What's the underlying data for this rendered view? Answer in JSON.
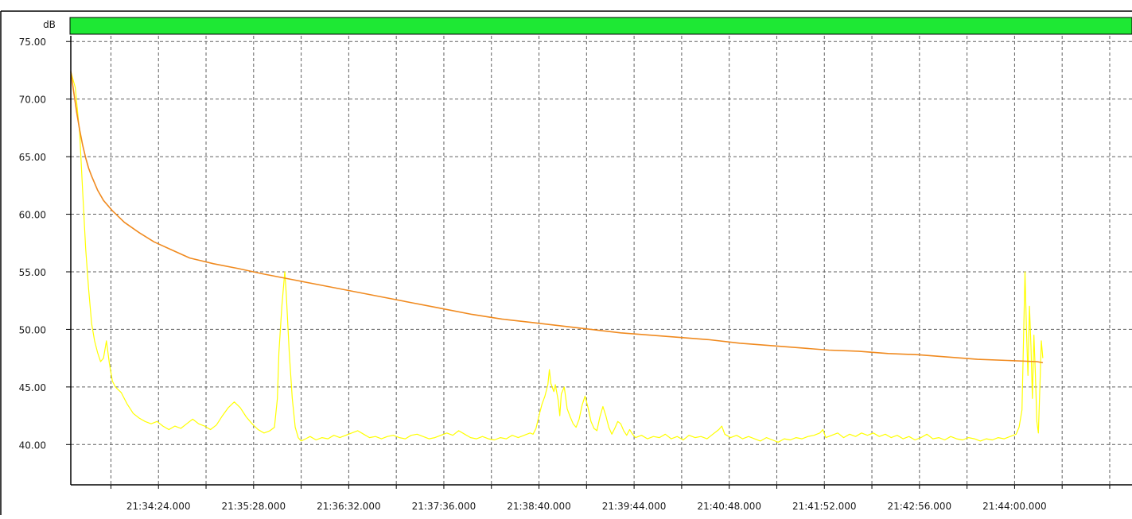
{
  "chart_data": {
    "type": "line",
    "ylabel": "dB",
    "ylim": [
      36.5,
      75.5
    ],
    "y_ticks": [
      "75.00",
      "70.00",
      "65.00",
      "60.00",
      "55.00",
      "50.00",
      "45.00",
      "40.00"
    ],
    "y_tick_values": [
      75,
      70,
      65,
      60,
      55,
      50,
      45,
      40
    ],
    "x_unit": "seconds_since_21:34:24.000",
    "xlim": [
      -59,
      655
    ],
    "x_ticks": [
      "21:34:24.000",
      "21:35:28.000",
      "21:36:32.000",
      "21:37:36.000",
      "21:38:40.000",
      "21:39:44.000",
      "21:40:48.000",
      "21:41:52.000",
      "21:42:56.000",
      "21:44:00.000"
    ],
    "x_tick_values": [
      0,
      64,
      128,
      192,
      256,
      320,
      384,
      448,
      512,
      576
    ],
    "grid": true,
    "level_bar_color": "#1ee834",
    "series": [
      {
        "color": "#ffff00",
        "points": [
          [
            -59,
            72.4
          ],
          [
            -56,
            71.0
          ],
          [
            -53,
            67.0
          ],
          [
            -51,
            62.0
          ],
          [
            -49,
            57.0
          ],
          [
            -47,
            53.5
          ],
          [
            -45,
            50.5
          ],
          [
            -43,
            49.0
          ],
          [
            -41,
            48.0
          ],
          [
            -39,
            47.2
          ],
          [
            -37,
            47.5
          ],
          [
            -35,
            49.0
          ],
          [
            -33,
            47.0
          ],
          [
            -31,
            45.5
          ],
          [
            -29,
            45.0
          ],
          [
            -25,
            44.5
          ],
          [
            -21,
            43.5
          ],
          [
            -17,
            42.7
          ],
          [
            -13,
            42.3
          ],
          [
            -9,
            42.0
          ],
          [
            -5,
            41.8
          ],
          [
            -1,
            42.0
          ],
          [
            3,
            41.6
          ],
          [
            7,
            41.3
          ],
          [
            11,
            41.6
          ],
          [
            15,
            41.4
          ],
          [
            19,
            41.8
          ],
          [
            23,
            42.2
          ],
          [
            27,
            41.8
          ],
          [
            31,
            41.6
          ],
          [
            35,
            41.3
          ],
          [
            39,
            41.7
          ],
          [
            43,
            42.5
          ],
          [
            47,
            43.2
          ],
          [
            51,
            43.7
          ],
          [
            55,
            43.2
          ],
          [
            59,
            42.4
          ],
          [
            63,
            41.8
          ],
          [
            67,
            41.3
          ],
          [
            71,
            41.0
          ],
          [
            75,
            41.2
          ],
          [
            78,
            41.5
          ],
          [
            80,
            44.0
          ],
          [
            81,
            48.0
          ],
          [
            83,
            52.0
          ],
          [
            85,
            55.0
          ],
          [
            86,
            53.0
          ],
          [
            88,
            48.0
          ],
          [
            90,
            44.0
          ],
          [
            92,
            41.5
          ],
          [
            94,
            40.6
          ],
          [
            96,
            40.3
          ],
          [
            99,
            40.5
          ],
          [
            102,
            40.7
          ],
          [
            106,
            40.4
          ],
          [
            110,
            40.6
          ],
          [
            114,
            40.5
          ],
          [
            118,
            40.8
          ],
          [
            122,
            40.6
          ],
          [
            126,
            40.8
          ],
          [
            130,
            41.0
          ],
          [
            134,
            41.2
          ],
          [
            138,
            40.9
          ],
          [
            142,
            40.6
          ],
          [
            146,
            40.7
          ],
          [
            150,
            40.5
          ],
          [
            154,
            40.7
          ],
          [
            158,
            40.8
          ],
          [
            162,
            40.6
          ],
          [
            166,
            40.5
          ],
          [
            170,
            40.8
          ],
          [
            174,
            40.9
          ],
          [
            178,
            40.7
          ],
          [
            182,
            40.5
          ],
          [
            186,
            40.6
          ],
          [
            190,
            40.8
          ],
          [
            194,
            41.0
          ],
          [
            198,
            40.8
          ],
          [
            202,
            41.2
          ],
          [
            206,
            40.9
          ],
          [
            210,
            40.6
          ],
          [
            214,
            40.5
          ],
          [
            218,
            40.7
          ],
          [
            222,
            40.5
          ],
          [
            226,
            40.4
          ],
          [
            230,
            40.6
          ],
          [
            234,
            40.5
          ],
          [
            238,
            40.8
          ],
          [
            242,
            40.6
          ],
          [
            246,
            40.8
          ],
          [
            250,
            41.0
          ],
          [
            252,
            40.9
          ],
          [
            254,
            41.4
          ],
          [
            256,
            42.5
          ],
          [
            258,
            43.5
          ],
          [
            260,
            44.2
          ],
          [
            262,
            45.2
          ],
          [
            263,
            46.5
          ],
          [
            264,
            45.3
          ],
          [
            266,
            44.6
          ],
          [
            267,
            45.2
          ],
          [
            269,
            43.8
          ],
          [
            270,
            42.5
          ],
          [
            271,
            44.4
          ],
          [
            273,
            45.0
          ],
          [
            275,
            43.1
          ],
          [
            277,
            42.4
          ],
          [
            279,
            41.8
          ],
          [
            281,
            41.5
          ],
          [
            283,
            42.2
          ],
          [
            285,
            43.4
          ],
          [
            287,
            44.2
          ],
          [
            289,
            43.2
          ],
          [
            291,
            42.0
          ],
          [
            293,
            41.4
          ],
          [
            295,
            41.2
          ],
          [
            297,
            42.4
          ],
          [
            299,
            43.3
          ],
          [
            301,
            42.5
          ],
          [
            303,
            41.5
          ],
          [
            305,
            40.9
          ],
          [
            307,
            41.4
          ],
          [
            309,
            42.0
          ],
          [
            311,
            41.8
          ],
          [
            313,
            41.2
          ],
          [
            315,
            40.8
          ],
          [
            317,
            41.3
          ],
          [
            319,
            40.9
          ],
          [
            321,
            40.6
          ],
          [
            325,
            40.8
          ],
          [
            329,
            40.5
          ],
          [
            333,
            40.7
          ],
          [
            337,
            40.6
          ],
          [
            341,
            40.9
          ],
          [
            345,
            40.5
          ],
          [
            349,
            40.7
          ],
          [
            353,
            40.4
          ],
          [
            357,
            40.8
          ],
          [
            361,
            40.6
          ],
          [
            365,
            40.7
          ],
          [
            369,
            40.5
          ],
          [
            373,
            40.9
          ],
          [
            377,
            41.3
          ],
          [
            379,
            41.6
          ],
          [
            381,
            40.9
          ],
          [
            385,
            40.6
          ],
          [
            389,
            40.8
          ],
          [
            393,
            40.5
          ],
          [
            397,
            40.7
          ],
          [
            401,
            40.5
          ],
          [
            405,
            40.3
          ],
          [
            409,
            40.6
          ],
          [
            413,
            40.4
          ],
          [
            417,
            40.2
          ],
          [
            421,
            40.5
          ],
          [
            425,
            40.4
          ],
          [
            429,
            40.6
          ],
          [
            433,
            40.5
          ],
          [
            437,
            40.7
          ],
          [
            441,
            40.8
          ],
          [
            445,
            41.0
          ],
          [
            447,
            41.3
          ],
          [
            449,
            40.6
          ],
          [
            453,
            40.8
          ],
          [
            457,
            41.0
          ],
          [
            461,
            40.6
          ],
          [
            465,
            40.9
          ],
          [
            469,
            40.7
          ],
          [
            473,
            41.0
          ],
          [
            477,
            40.8
          ],
          [
            481,
            41.0
          ],
          [
            485,
            40.7
          ],
          [
            489,
            40.9
          ],
          [
            493,
            40.6
          ],
          [
            497,
            40.8
          ],
          [
            501,
            40.5
          ],
          [
            505,
            40.7
          ],
          [
            509,
            40.4
          ],
          [
            513,
            40.6
          ],
          [
            517,
            40.9
          ],
          [
            521,
            40.5
          ],
          [
            525,
            40.6
          ],
          [
            529,
            40.4
          ],
          [
            533,
            40.7
          ],
          [
            537,
            40.5
          ],
          [
            541,
            40.4
          ],
          [
            545,
            40.6
          ],
          [
            549,
            40.5
          ],
          [
            553,
            40.3
          ],
          [
            557,
            40.5
          ],
          [
            561,
            40.4
          ],
          [
            565,
            40.6
          ],
          [
            569,
            40.5
          ],
          [
            573,
            40.7
          ],
          [
            577,
            40.9
          ],
          [
            579,
            41.5
          ],
          [
            581,
            43.0
          ],
          [
            583,
            55.0
          ],
          [
            584,
            50.0
          ],
          [
            585,
            46.0
          ],
          [
            586,
            52.0
          ],
          [
            587,
            48.5
          ],
          [
            588,
            44.0
          ],
          [
            589,
            49.5
          ],
          [
            590,
            46.0
          ],
          [
            591,
            42.0
          ],
          [
            592,
            41.0
          ],
          [
            593,
            45.0
          ],
          [
            594,
            49.0
          ],
          [
            595,
            47.5
          ]
        ]
      },
      {
        "color": "#f08a1f",
        "points": [
          [
            -59,
            72.4
          ],
          [
            -57,
            70.6
          ],
          [
            -55,
            68.8
          ],
          [
            -53,
            67.3
          ],
          [
            -51,
            66.0
          ],
          [
            -49,
            64.9
          ],
          [
            -47,
            64.0
          ],
          [
            -45,
            63.3
          ],
          [
            -41,
            62.1
          ],
          [
            -37,
            61.2
          ],
          [
            -31,
            60.3
          ],
          [
            -23,
            59.3
          ],
          [
            -13,
            58.4
          ],
          [
            -3,
            57.6
          ],
          [
            9,
            56.9
          ],
          [
            21,
            56.2
          ],
          [
            37,
            55.7
          ],
          [
            53,
            55.3
          ],
          [
            71,
            54.8
          ],
          [
            91,
            54.3
          ],
          [
            111,
            53.8
          ],
          [
            131,
            53.3
          ],
          [
            151,
            52.8
          ],
          [
            171,
            52.3
          ],
          [
            191,
            51.8
          ],
          [
            211,
            51.3
          ],
          [
            231,
            50.9
          ],
          [
            251,
            50.6
          ],
          [
            271,
            50.3
          ],
          [
            291,
            50.0
          ],
          [
            311,
            49.7
          ],
          [
            331,
            49.5
          ],
          [
            351,
            49.3
          ],
          [
            371,
            49.1
          ],
          [
            391,
            48.8
          ],
          [
            411,
            48.6
          ],
          [
            431,
            48.4
          ],
          [
            451,
            48.2
          ],
          [
            471,
            48.1
          ],
          [
            491,
            47.9
          ],
          [
            511,
            47.8
          ],
          [
            531,
            47.6
          ],
          [
            551,
            47.4
          ],
          [
            571,
            47.3
          ],
          [
            591,
            47.2
          ],
          [
            595,
            47.1
          ]
        ]
      }
    ]
  }
}
